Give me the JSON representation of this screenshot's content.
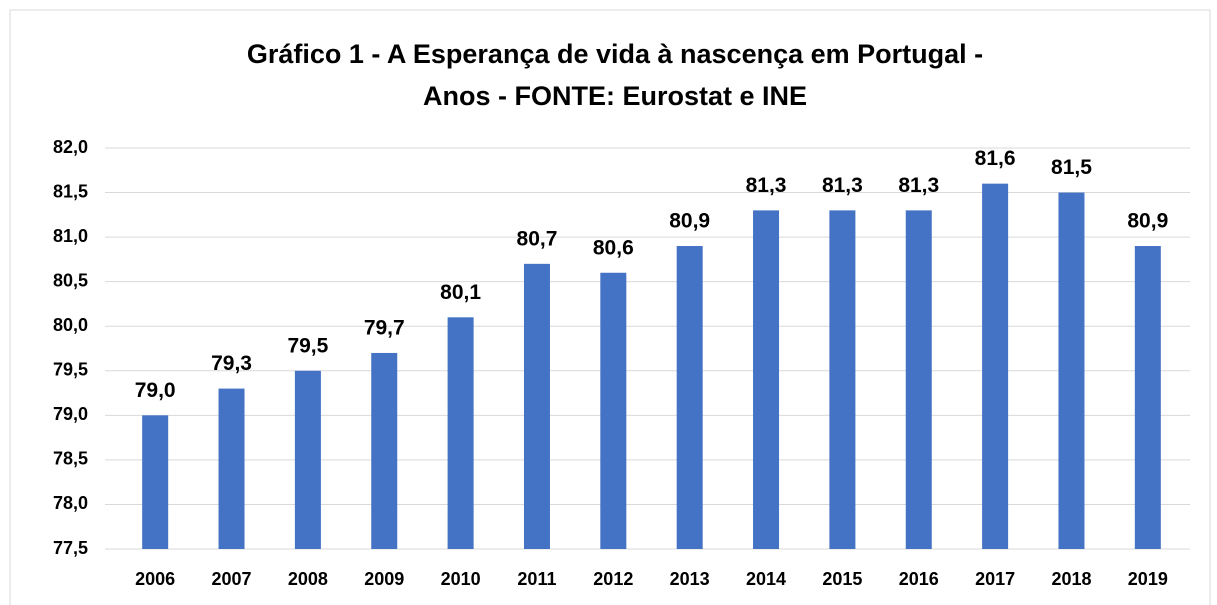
{
  "chart_data": {
    "type": "bar",
    "title": [
      "Gráfico 1 - A Esperança de vida à nascença em Portugal -",
      "Anos - FONTE: Eurostat e INE"
    ],
    "categories": [
      "2006",
      "2007",
      "2008",
      "2009",
      "2010",
      "2011",
      "2012",
      "2013",
      "2014",
      "2015",
      "2016",
      "2017",
      "2018",
      "2019"
    ],
    "values": [
      79.0,
      79.3,
      79.5,
      79.7,
      80.1,
      80.7,
      80.6,
      80.9,
      81.3,
      81.3,
      81.3,
      81.6,
      81.5,
      80.9
    ],
    "value_labels": [
      "79,0",
      "79,3",
      "79,5",
      "79,7",
      "80,1",
      "80,7",
      "80,6",
      "80,9",
      "81,3",
      "81,3",
      "81,3",
      "81,6",
      "81,5",
      "80,9"
    ],
    "color": "#4472c4",
    "ylim": [
      77.5,
      82.0
    ],
    "yticks": [
      {
        "value": 77.5,
        "label": "77,5"
      },
      {
        "value": 78.0,
        "label": "78,0"
      },
      {
        "value": 78.5,
        "label": "78,5"
      },
      {
        "value": 79.0,
        "label": "79,0"
      },
      {
        "value": 79.5,
        "label": "79,5"
      },
      {
        "value": 80.0,
        "label": "80,0"
      },
      {
        "value": 80.5,
        "label": "80,5"
      },
      {
        "value": 81.0,
        "label": "81,0"
      },
      {
        "value": 81.5,
        "label": "81,5"
      },
      {
        "value": 82.0,
        "label": "82,0"
      }
    ],
    "grid": true
  }
}
